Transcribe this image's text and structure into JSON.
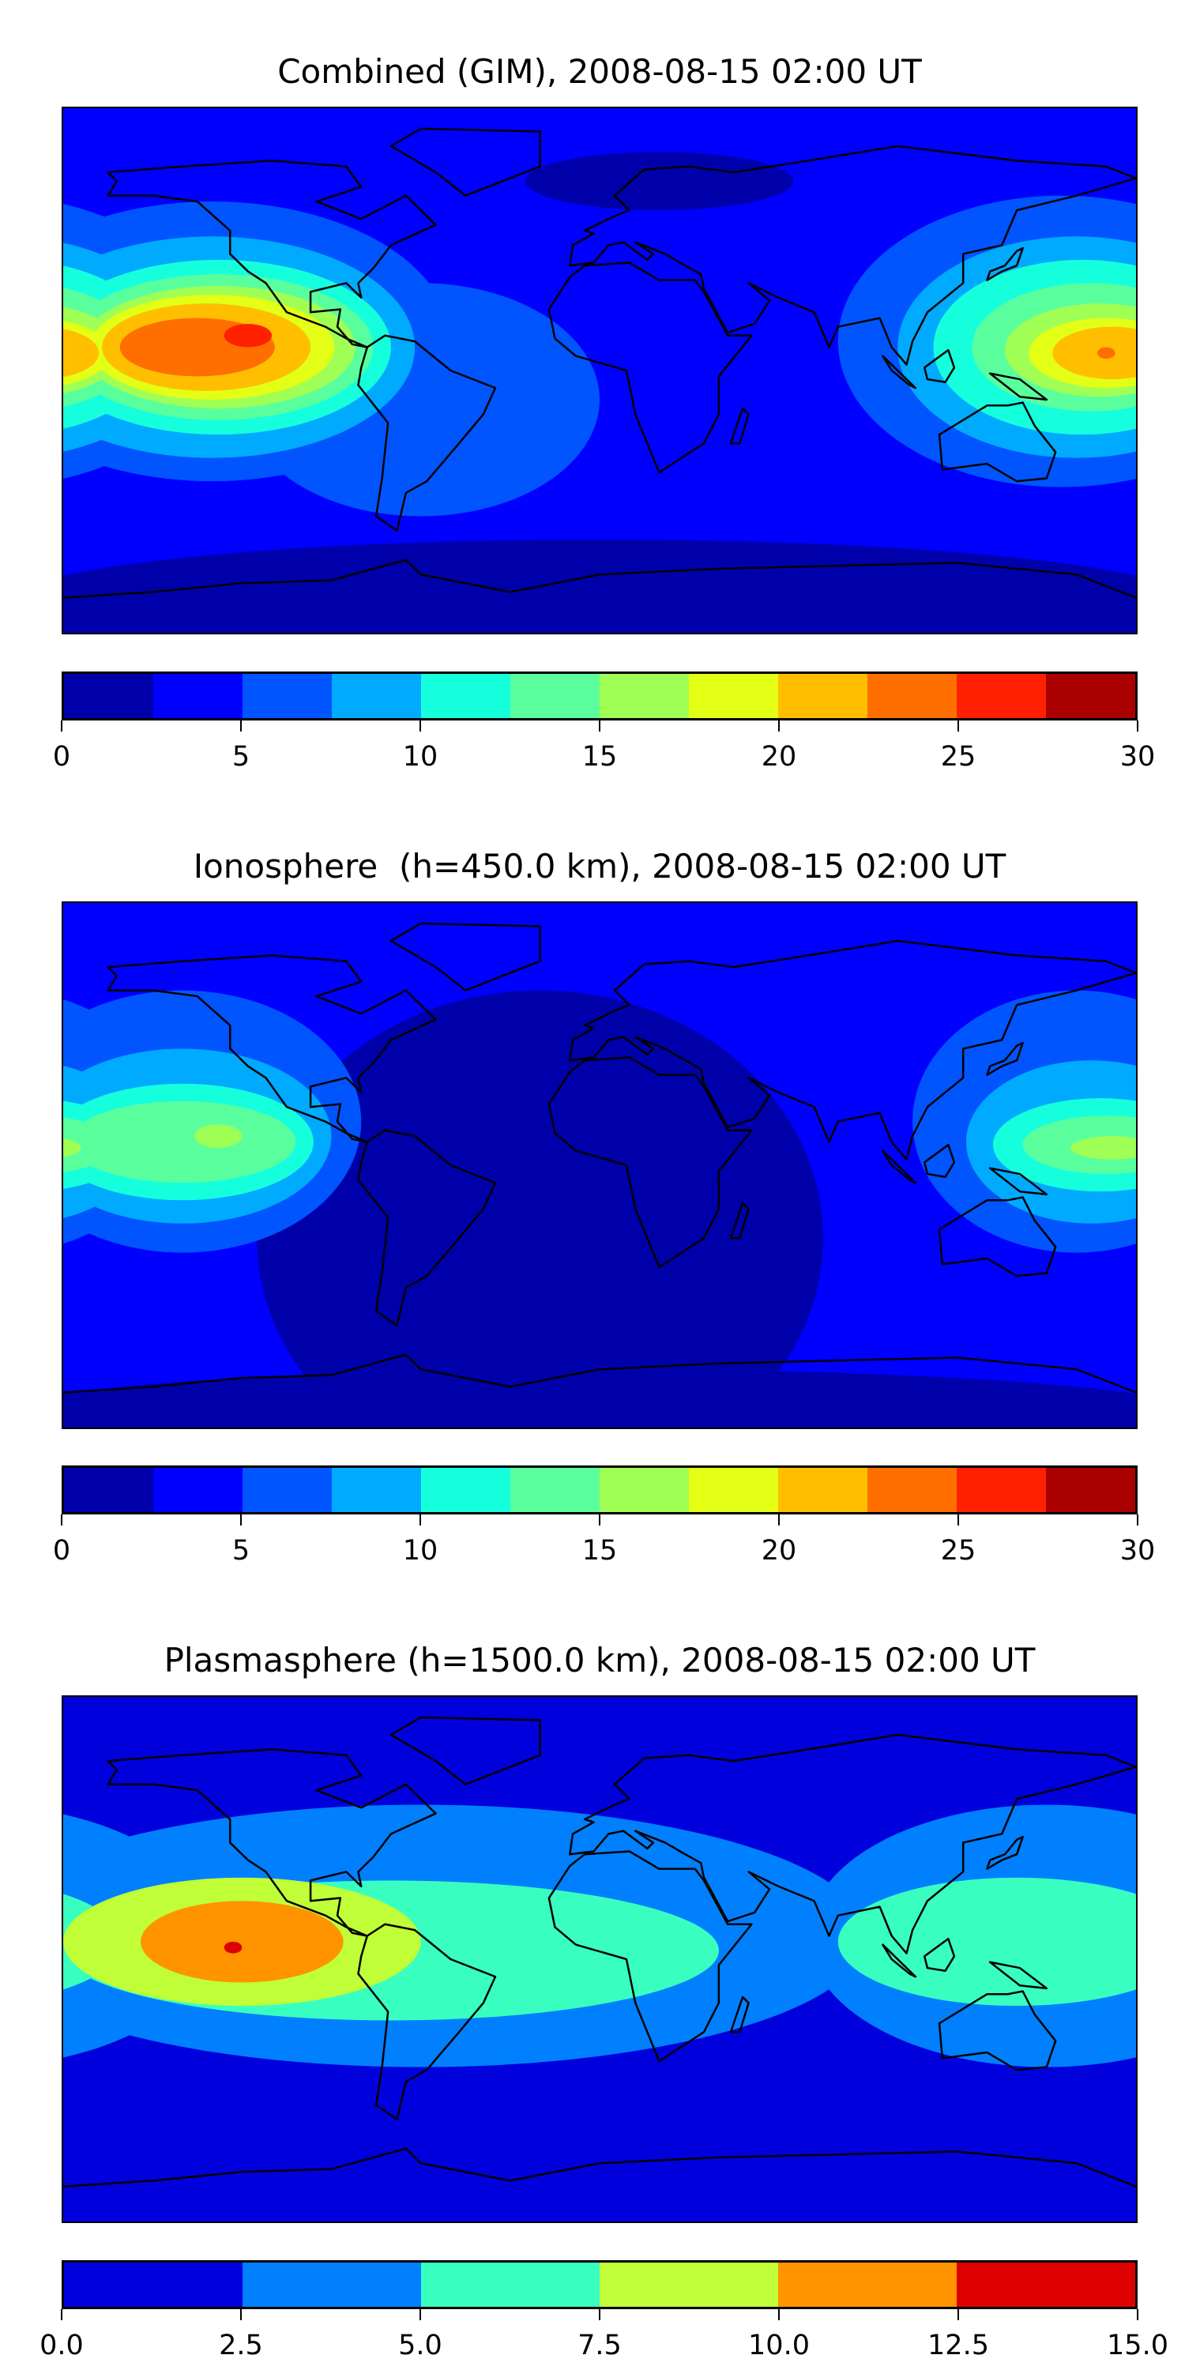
{
  "chart_data": [
    {
      "type": "heatmap",
      "title": "Combined (GIM), 2008-08-15 02:00 UT",
      "levels": [
        0,
        2.5,
        5,
        7.5,
        10,
        12.5,
        15,
        17.5,
        20,
        22.5,
        25,
        27.5,
        30
      ],
      "colors": [
        "#0000aa",
        "#0000ff",
        "#0055ff",
        "#00aaff",
        "#16ffdd",
        "#5aff9d",
        "#a0ff55",
        "#e3ff15",
        "#ffbf00",
        "#ff6f00",
        "#ff2000",
        "#aa0000"
      ],
      "tick_labels": [
        "0",
        "5",
        "10",
        "15",
        "20",
        "25",
        "30"
      ],
      "tick_values": [
        0,
        5,
        10,
        15,
        20,
        25,
        30
      ],
      "xlim": [
        -180,
        180
      ],
      "ylim": [
        -90,
        90
      ],
      "base_level": 1,
      "regions": [
        {
          "lon": 0,
          "lat": -80,
          "rlon": 200,
          "rlat": 22,
          "level": 0
        },
        {
          "lon": 20,
          "lat": 65,
          "rlon": 45,
          "rlat": 10,
          "level": 0
        },
        {
          "lon": -60,
          "lat": -10,
          "rlon": 60,
          "rlat": 40,
          "level": 2
        },
        {
          "lon": -130,
          "lat": 10,
          "rlon": 80,
          "rlat": 48,
          "level": 2
        },
        {
          "lon": 155,
          "lat": 10,
          "rlon": 75,
          "rlat": 50,
          "level": 2
        },
        {
          "lon": -130,
          "lat": 8,
          "rlon": 68,
          "rlat": 38,
          "level": 3
        },
        {
          "lon": 160,
          "lat": 8,
          "rlon": 60,
          "rlat": 38,
          "level": 3
        },
        {
          "lon": -128,
          "lat": 8,
          "rlon": 58,
          "rlat": 30,
          "level": 4
        },
        {
          "lon": 162,
          "lat": 8,
          "rlon": 50,
          "rlat": 30,
          "level": 4
        },
        {
          "lon": -128,
          "lat": 8,
          "rlon": 52,
          "rlat": 25,
          "level": 5
        },
        {
          "lon": 165,
          "lat": 8,
          "rlon": 40,
          "rlat": 22,
          "level": 5
        },
        {
          "lon": -128,
          "lat": 8,
          "rlon": 46,
          "rlat": 21,
          "level": 6
        },
        {
          "lon": 168,
          "lat": 7,
          "rlon": 32,
          "rlat": 16,
          "level": 6
        },
        {
          "lon": -130,
          "lat": 8,
          "rlon": 41,
          "rlat": 18,
          "level": 7
        },
        {
          "lon": 170,
          "lat": 6,
          "rlon": 26,
          "rlat": 12,
          "level": 7
        },
        {
          "lon": -132,
          "lat": 8,
          "rlon": 35,
          "rlat": 15,
          "level": 8
        },
        {
          "lon": 172,
          "lat": 6,
          "rlon": 20,
          "rlat": 9,
          "level": 8
        },
        {
          "lon": -135,
          "lat": 8,
          "rlon": 26,
          "rlat": 10,
          "level": 9
        },
        {
          "lon": -118,
          "lat": 12,
          "rlon": 8,
          "rlat": 4,
          "level": 10
        },
        {
          "lon": 170,
          "lat": 6,
          "rlon": 3,
          "rlat": 2,
          "level": 9
        }
      ]
    },
    {
      "type": "heatmap",
      "title": "Ionosphere  (h=450.0 km), 2008-08-15 02:00 UT",
      "levels": [
        0,
        2.5,
        5,
        7.5,
        10,
        12.5,
        15,
        17.5,
        20,
        22.5,
        25,
        27.5,
        30
      ],
      "colors": [
        "#0000aa",
        "#0000ff",
        "#0055ff",
        "#00aaff",
        "#16ffdd",
        "#5aff9d",
        "#a0ff55",
        "#e3ff15",
        "#ffbf00",
        "#ff6f00",
        "#ff2000",
        "#aa0000"
      ],
      "tick_labels": [
        "0",
        "5",
        "10",
        "15",
        "20",
        "25",
        "30"
      ],
      "tick_values": [
        0,
        5,
        10,
        15,
        20,
        25,
        30
      ],
      "xlim": [
        -180,
        180
      ],
      "ylim": [
        -90,
        90
      ],
      "base_level": 1,
      "regions": [
        {
          "lon": -20,
          "lat": -25,
          "rlon": 95,
          "rlat": 85,
          "level": 0
        },
        {
          "lon": 0,
          "lat": -85,
          "rlon": 200,
          "rlat": 15,
          "level": 0
        },
        {
          "lon": -140,
          "lat": 15,
          "rlon": 60,
          "rlat": 45,
          "level": 2
        },
        {
          "lon": 160,
          "lat": 15,
          "rlon": 55,
          "rlat": 45,
          "level": 2
        },
        {
          "lon": -140,
          "lat": 10,
          "rlon": 50,
          "rlat": 30,
          "level": 3
        },
        {
          "lon": 165,
          "lat": 8,
          "rlon": 42,
          "rlat": 28,
          "level": 3
        },
        {
          "lon": -140,
          "lat": 8,
          "rlon": 44,
          "rlat": 20,
          "level": 4
        },
        {
          "lon": 168,
          "lat": 7,
          "rlon": 36,
          "rlat": 16,
          "level": 4
        },
        {
          "lon": -140,
          "lat": 8,
          "rlon": 38,
          "rlat": 14,
          "level": 5
        },
        {
          "lon": 170,
          "lat": 7,
          "rlon": 28,
          "rlat": 10,
          "level": 5
        },
        {
          "lon": -128,
          "lat": 10,
          "rlon": 8,
          "rlat": 4,
          "level": 6
        },
        {
          "lon": 172,
          "lat": 6,
          "rlon": 14,
          "rlat": 4,
          "level": 6
        }
      ]
    },
    {
      "type": "heatmap",
      "title": "Plasmasphere (h=1500.0 km), 2008-08-15 02:00 UT",
      "levels": [
        0,
        2.5,
        5,
        7.5,
        10,
        12.5,
        15
      ],
      "colors": [
        "#0000dd",
        "#0080ff",
        "#38ffc0",
        "#c0ff38",
        "#ff9400",
        "#dd0000"
      ],
      "tick_labels": [
        "0.0",
        "2.5",
        "5.0",
        "7.5",
        "10.0",
        "12.5",
        "15.0"
      ],
      "tick_values": [
        0,
        2.5,
        5,
        7.5,
        10,
        12.5,
        15
      ],
      "xlim": [
        -180,
        180
      ],
      "ylim": [
        -90,
        90
      ],
      "base_level": 0,
      "regions": [
        {
          "lon": -60,
          "lat": 8,
          "rlon": 150,
          "rlat": 45,
          "level": 1
        },
        {
          "lon": 150,
          "lat": 8,
          "rlon": 80,
          "rlat": 45,
          "level": 1
        },
        {
          "lon": -70,
          "lat": 3,
          "rlon": 110,
          "rlat": 24,
          "level": 2
        },
        {
          "lon": 140,
          "lat": 6,
          "rlon": 60,
          "rlat": 22,
          "level": 2
        },
        {
          "lon": -120,
          "lat": 6,
          "rlon": 60,
          "rlat": 22,
          "level": 3
        },
        {
          "lon": -120,
          "lat": 6,
          "rlon": 34,
          "rlat": 14,
          "level": 4
        },
        {
          "lon": -123,
          "lat": 4,
          "rlon": 3,
          "rlat": 2,
          "level": 5
        }
      ]
    }
  ]
}
